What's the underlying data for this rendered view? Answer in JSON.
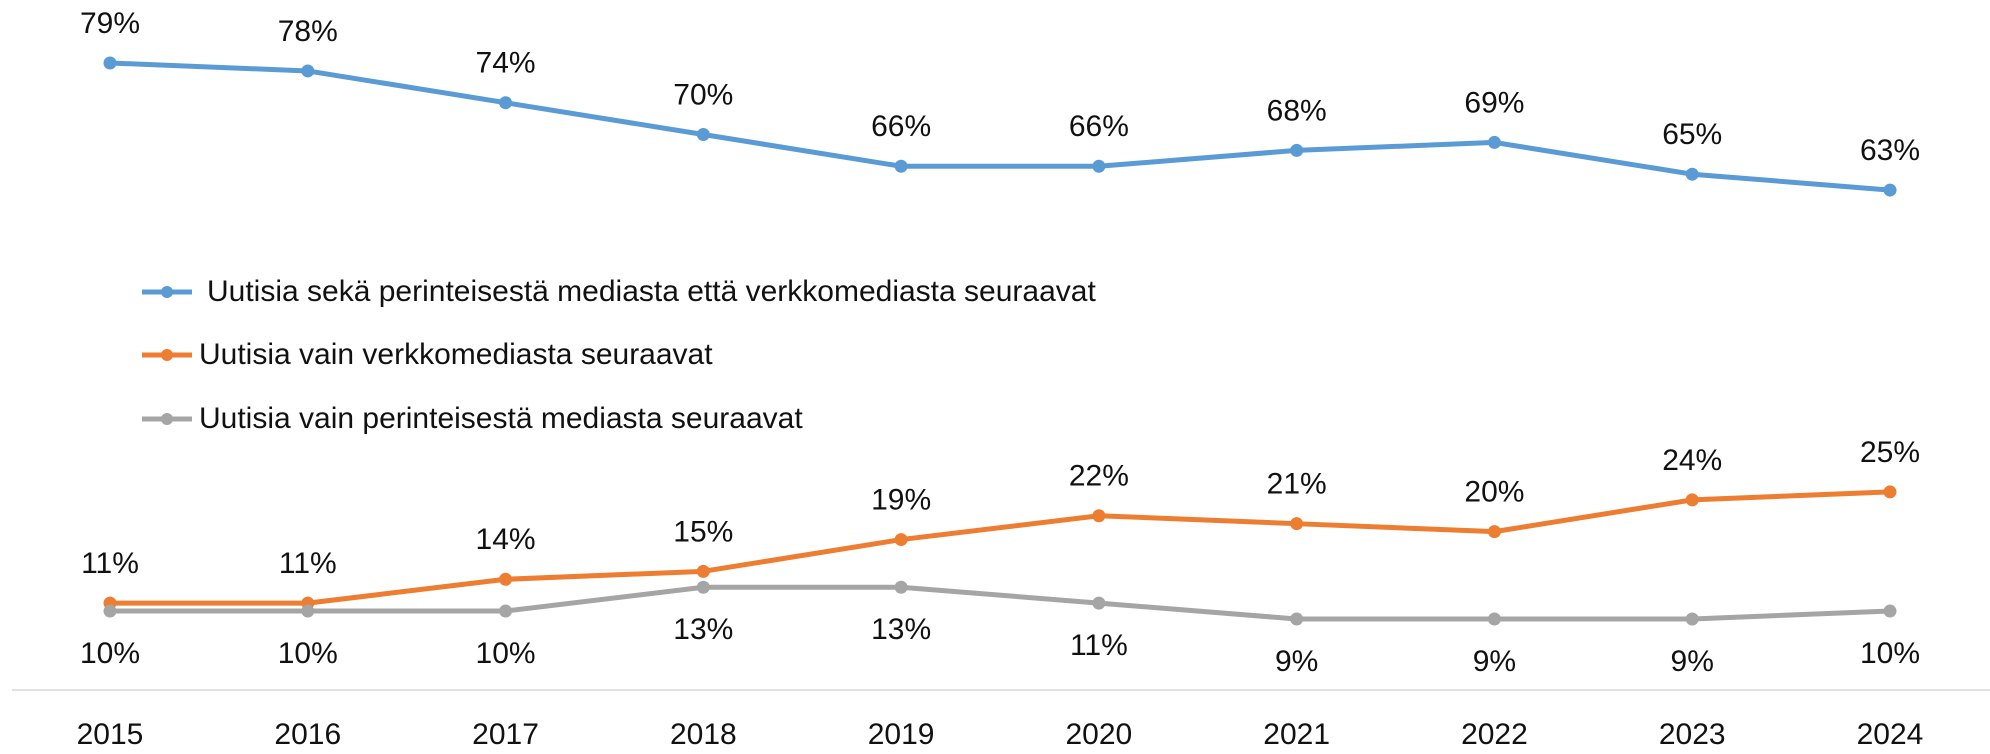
{
  "chart_data": {
    "type": "line",
    "categories": [
      "2015",
      "2016",
      "2017",
      "2018",
      "2019",
      "2020",
      "2021",
      "2022",
      "2023",
      "2024"
    ],
    "series": [
      {
        "name": "Uutisia sekä perinteisestä mediasta että verkkomediasta seuraavat",
        "color": "#5b9bd5",
        "values": [
          79,
          78,
          74,
          70,
          66,
          66,
          68,
          69,
          65,
          63
        ],
        "value_labels": [
          "79%",
          "78%",
          "74%",
          "70%",
          "66%",
          "66%",
          "68%",
          "69%",
          "65%",
          "63%"
        ]
      },
      {
        "name": "Uutisia vain verkkomediasta seuraavat",
        "color": "#ed7d31",
        "values": [
          11,
          11,
          14,
          15,
          19,
          22,
          21,
          20,
          24,
          25
        ],
        "value_labels": [
          "11%",
          "11%",
          "14%",
          "15%",
          "19%",
          "22%",
          "21%",
          "20%",
          "24%",
          "25%"
        ]
      },
      {
        "name": "Uutisia vain perinteisestä mediasta seuraavat",
        "color": "#a5a5a5",
        "values": [
          10,
          10,
          10,
          13,
          13,
          11,
          9,
          9,
          9,
          10
        ],
        "value_labels": [
          "10%",
          "10%",
          "10%",
          "13%",
          "13%",
          "11%",
          "9%",
          "9%",
          "9%",
          "10%"
        ]
      }
    ],
    "legend": "middle-left"
  }
}
